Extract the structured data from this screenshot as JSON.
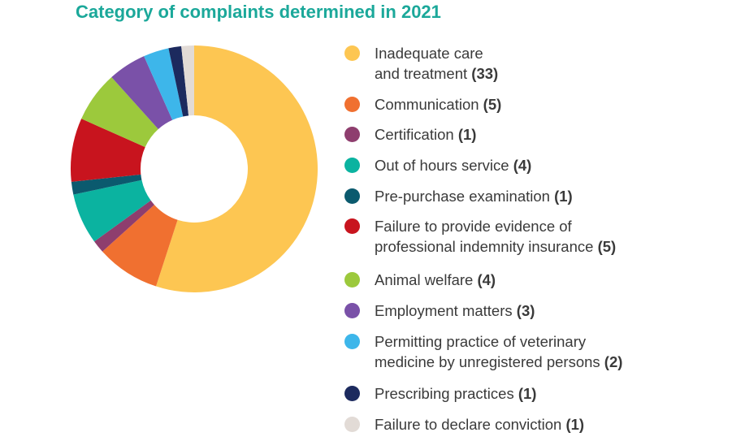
{
  "chart_data": {
    "type": "pie",
    "variant": "donut",
    "title": "Category of complaints determined in 2021",
    "categories": [
      {
        "label": "Inadequate care and treatment",
        "lines": [
          "Inadequate care",
          "and treatment"
        ],
        "value": 33,
        "count_text": "(33)",
        "color": "#fdc652"
      },
      {
        "label": "Communication",
        "lines": [
          "Communication"
        ],
        "value": 5,
        "count_text": "(5)",
        "color": "#f07030"
      },
      {
        "label": "Certification",
        "lines": [
          "Certification"
        ],
        "value": 1,
        "count_text": "(1)",
        "color": "#8e3e6e"
      },
      {
        "label": "Out of hours service",
        "lines": [
          "Out of hours service"
        ],
        "value": 4,
        "count_text": "(4)",
        "color": "#0bb3a0"
      },
      {
        "label": "Pre-purchase examination",
        "lines": [
          "Pre-purchase examination"
        ],
        "value": 1,
        "count_text": "(1)",
        "color": "#0b5a6e"
      },
      {
        "label": "Failure to provide evidence of professional indemnity insurance",
        "lines": [
          "Failure to provide evidence of",
          "professional indemnity insurance"
        ],
        "value": 5,
        "count_text": "(5)",
        "color": "#c8141e"
      },
      {
        "label": "Animal welfare",
        "lines": [
          "Animal welfare"
        ],
        "value": 4,
        "count_text": "(4)",
        "color": "#9cc93c"
      },
      {
        "label": "Employment matters",
        "lines": [
          "Employment matters"
        ],
        "value": 3,
        "count_text": "(3)",
        "color": "#7a51a8"
      },
      {
        "label": "Permitting practice of veterinary medicine by unregistered persons",
        "lines": [
          "Permitting practice of veterinary",
          "medicine by unregistered persons"
        ],
        "value": 2,
        "count_text": "(2)",
        "color": "#3db6ea"
      },
      {
        "label": "Prescribing practices",
        "lines": [
          "Prescribing practices"
        ],
        "value": 1,
        "count_text": "(1)",
        "color": "#1c2a5e"
      },
      {
        "label": "Failure to declare conviction",
        "lines": [
          "Failure to declare conviction"
        ],
        "value": 1,
        "count_text": "(1)",
        "color": "#e2dbd6"
      }
    ]
  }
}
